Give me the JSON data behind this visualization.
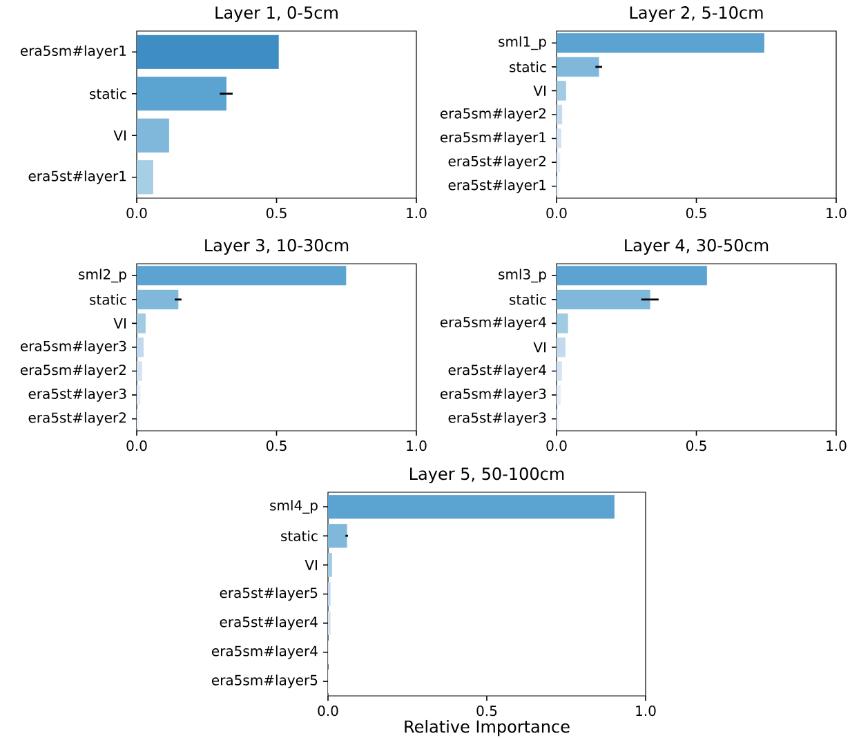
{
  "chart_data": [
    {
      "type": "bar",
      "orientation": "horizontal",
      "title": "Layer 1, 0-5cm",
      "categories": [
        "era5sm#layer1",
        "static",
        "VI",
        "era5st#layer1"
      ],
      "values": [
        0.507,
        0.32,
        0.115,
        0.058
      ],
      "errors": [
        null,
        0.023,
        null,
        null
      ],
      "colors": [
        "#3e8ec4",
        "#5ba3d0",
        "#7fb8da",
        "#a6cee4"
      ],
      "xlim": [
        0,
        1
      ],
      "xticks": [
        {
          "value": 0,
          "label": "0.0"
        },
        {
          "value": 0.5,
          "label": "0.5"
        },
        {
          "value": 1,
          "label": "1.0"
        }
      ]
    },
    {
      "type": "bar",
      "orientation": "horizontal",
      "title": "Layer 2, 5-10cm",
      "categories": [
        "sml1_p",
        "static",
        "VI",
        "era5sm#layer2",
        "era5sm#layer1",
        "era5st#layer2",
        "era5st#layer1"
      ],
      "values": [
        0.742,
        0.151,
        0.033,
        0.019,
        0.016,
        0.012,
        0.009
      ],
      "errors": [
        null,
        0.012,
        null,
        null,
        null,
        null,
        null
      ],
      "colors": [
        "#5ba3d0",
        "#7fb8da",
        "#a0cbe2",
        "#c2d9ee",
        "#d3e3f3",
        "#e3eef9",
        "#f0f6fd"
      ],
      "xlim": [
        0,
        1
      ],
      "xticks": [
        {
          "value": 0,
          "label": "0.0"
        },
        {
          "value": 0.5,
          "label": "0.5"
        },
        {
          "value": 1,
          "label": "1.0"
        }
      ]
    },
    {
      "type": "bar",
      "orientation": "horizontal",
      "title": "Layer 3, 10-30cm",
      "categories": [
        "sml2_p",
        "static",
        "VI",
        "era5sm#layer3",
        "era5sm#layer2",
        "era5st#layer3",
        "era5st#layer2"
      ],
      "values": [
        0.748,
        0.148,
        0.031,
        0.024,
        0.018,
        0.012,
        0.01
      ],
      "errors": [
        null,
        0.012,
        null,
        null,
        null,
        null,
        null
      ],
      "colors": [
        "#5ba3d0",
        "#7fb8da",
        "#a0cbe2",
        "#c2d9ee",
        "#d3e3f3",
        "#e3eef9",
        "#f0f6fd"
      ],
      "xlim": [
        0,
        1
      ],
      "xticks": [
        {
          "value": 0,
          "label": "0.0"
        },
        {
          "value": 0.5,
          "label": "0.5"
        },
        {
          "value": 1,
          "label": "1.0"
        }
      ]
    },
    {
      "type": "bar",
      "orientation": "horizontal",
      "title": "Layer 4, 30-50cm",
      "categories": [
        "sml3_p",
        "static",
        "era5sm#layer4",
        "VI",
        "era5st#layer4",
        "era5sm#layer3",
        "era5st#layer3"
      ],
      "values": [
        0.537,
        0.334,
        0.04,
        0.031,
        0.018,
        0.014,
        0.009
      ],
      "errors": [
        null,
        0.031,
        null,
        null,
        null,
        null,
        null
      ],
      "colors": [
        "#5ba3d0",
        "#7fb8da",
        "#a0cbe2",
        "#c2d9ee",
        "#d3e3f3",
        "#e3eef9",
        "#f0f6fd"
      ],
      "xlim": [
        0,
        1
      ],
      "xticks": [
        {
          "value": 0,
          "label": "0.0"
        },
        {
          "value": 0.5,
          "label": "0.5"
        },
        {
          "value": 1,
          "label": "1.0"
        }
      ]
    },
    {
      "type": "bar",
      "orientation": "horizontal",
      "title": "Layer 5, 50-100cm",
      "xlabel": "Relative Importance",
      "categories": [
        "sml4_p",
        "static",
        "VI",
        "era5st#layer5",
        "era5st#layer4",
        "era5sm#layer4",
        "era5sm#layer5"
      ],
      "values": [
        0.901,
        0.059,
        0.012,
        0.007,
        0.007,
        0.002,
        0.002
      ],
      "errors": [
        null,
        0.004,
        null,
        null,
        null,
        null,
        null
      ],
      "colors": [
        "#5ba3d0",
        "#7fb8da",
        "#a0cbe2",
        "#c2d9ee",
        "#d3e3f3",
        "#e3eef9",
        "#f0f6fd"
      ],
      "xlim": [
        0,
        1
      ],
      "xticks": [
        {
          "value": 0,
          "label": "0.0"
        },
        {
          "value": 0.5,
          "label": "0.5"
        },
        {
          "value": 1,
          "label": "1.0"
        }
      ]
    }
  ]
}
